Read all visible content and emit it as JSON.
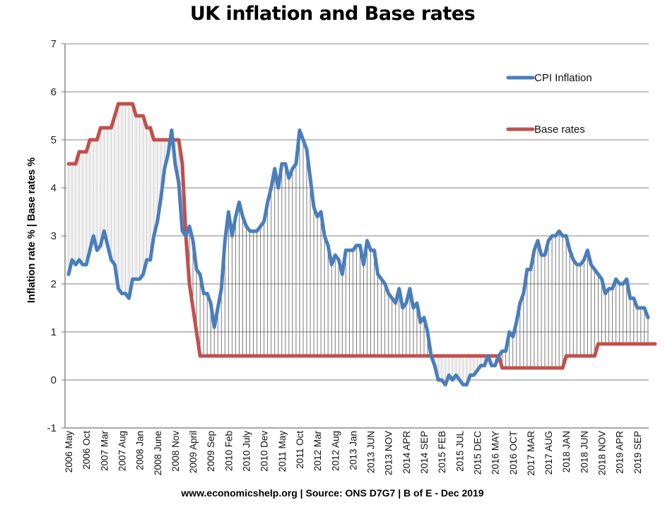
{
  "chart_data": {
    "type": "line",
    "title": "UK inflation and Base rates",
    "ylabel": "Inflation rate % | Base rates %",
    "xlabel": "",
    "footer": "www.economicshelp.org | Source: ONS D7G7 | B of E - Dec 2019",
    "ylim": [
      -1,
      7
    ],
    "yticks": [
      "-1",
      "0",
      "1",
      "2",
      "3",
      "4",
      "5",
      "6",
      "7"
    ],
    "grid": true,
    "legend_position": "top-right",
    "x_start": "2006 May",
    "x_end": "2019 Dec",
    "x_tick_every_months": 5,
    "x_tick_labels": [
      "2006 May",
      "2006 Oct",
      "2007 Mar",
      "2007 Aug",
      "2008 Jan",
      "2008 June",
      "2008 Nov",
      "2009 April",
      "2009  Sep",
      "2010 Feb",
      "2010 July",
      "2010 Dev",
      "2011 May",
      "2011 Oct",
      "2012 Mar",
      "2012 Aug",
      "2013 Jan",
      "2013 JUN",
      "2013 NOV",
      "2014 APR",
      "2014 SEP",
      "2015 FEB",
      "2015 JUL",
      "2015 DEC",
      "2016 MAY",
      "2016 OCT",
      "2017 MAR",
      "2017 AUG",
      "2018 JAN",
      "2018 JUN",
      "2018 NOV",
      "2019 APR",
      "2019 SEP"
    ],
    "series": [
      {
        "name": "CPI Inflation",
        "color": "#4a7ebb",
        "values": [
          2.2,
          2.5,
          2.4,
          2.5,
          2.4,
          2.4,
          2.7,
          3.0,
          2.7,
          2.8,
          3.1,
          2.8,
          2.5,
          2.4,
          1.9,
          1.8,
          1.8,
          1.7,
          2.1,
          2.1,
          2.1,
          2.2,
          2.5,
          2.5,
          3.0,
          3.3,
          3.8,
          4.4,
          4.7,
          5.2,
          4.5,
          4.1,
          3.1,
          3.0,
          3.2,
          2.9,
          2.3,
          2.2,
          1.8,
          1.8,
          1.6,
          1.1,
          1.5,
          1.9,
          2.9,
          3.5,
          3.0,
          3.4,
          3.7,
          3.4,
          3.2,
          3.1,
          3.1,
          3.1,
          3.2,
          3.3,
          3.7,
          4.0,
          4.4,
          4.0,
          4.5,
          4.5,
          4.2,
          4.4,
          4.5,
          5.2,
          5.0,
          4.8,
          4.2,
          3.6,
          3.4,
          3.5,
          3.0,
          2.8,
          2.4,
          2.6,
          2.5,
          2.2,
          2.7,
          2.7,
          2.7,
          2.8,
          2.8,
          2.4,
          2.9,
          2.7,
          2.7,
          2.2,
          2.1,
          2.0,
          1.8,
          1.7,
          1.6,
          1.9,
          1.5,
          1.6,
          1.9,
          1.5,
          1.6,
          1.2,
          1.3,
          1.0,
          0.5,
          0.3,
          0.0,
          0.0,
          -0.1,
          0.1,
          0.0,
          0.1,
          0.0,
          -0.1,
          -0.1,
          0.1,
          0.1,
          0.2,
          0.3,
          0.3,
          0.5,
          0.3,
          0.3,
          0.5,
          0.6,
          0.6,
          1.0,
          0.9,
          1.2,
          1.6,
          1.8,
          2.3,
          2.3,
          2.7,
          2.9,
          2.6,
          2.6,
          2.9,
          3.0,
          3.0,
          3.1,
          3.0,
          3.0,
          2.7,
          2.5,
          2.4,
          2.4,
          2.5,
          2.7,
          2.4,
          2.3,
          2.2,
          2.1,
          1.8,
          1.9,
          1.9,
          2.1,
          2.0,
          2.0,
          2.1,
          1.7,
          1.7,
          1.5,
          1.5,
          1.5,
          1.3
        ],
        "note": "monthly, 2006 May to 2019 Dec"
      },
      {
        "name": "Base rates",
        "color": "#c0504d",
        "values": [
          4.5,
          4.5,
          4.5,
          4.75,
          4.75,
          4.75,
          5.0,
          5.0,
          5.0,
          5.25,
          5.25,
          5.25,
          5.25,
          5.5,
          5.75,
          5.75,
          5.75,
          5.75,
          5.75,
          5.5,
          5.5,
          5.5,
          5.25,
          5.25,
          5.0,
          5.0,
          5.0,
          5.0,
          5.0,
          5.0,
          5.0,
          5.0,
          4.5,
          3.0,
          2.0,
          1.5,
          1.0,
          0.5,
          0.5,
          0.5,
          0.5,
          0.5,
          0.5,
          0.5,
          0.5,
          0.5,
          0.5,
          0.5,
          0.5,
          0.5,
          0.5,
          0.5,
          0.5,
          0.5,
          0.5,
          0.5,
          0.5,
          0.5,
          0.5,
          0.5,
          0.5,
          0.5,
          0.5,
          0.5,
          0.5,
          0.5,
          0.5,
          0.5,
          0.5,
          0.5,
          0.5,
          0.5,
          0.5,
          0.5,
          0.5,
          0.5,
          0.5,
          0.5,
          0.5,
          0.5,
          0.5,
          0.5,
          0.5,
          0.5,
          0.5,
          0.5,
          0.5,
          0.5,
          0.5,
          0.5,
          0.5,
          0.5,
          0.5,
          0.5,
          0.5,
          0.5,
          0.5,
          0.5,
          0.5,
          0.5,
          0.5,
          0.5,
          0.5,
          0.5,
          0.5,
          0.5,
          0.5,
          0.5,
          0.5,
          0.5,
          0.5,
          0.5,
          0.5,
          0.5,
          0.5,
          0.5,
          0.5,
          0.5,
          0.5,
          0.5,
          0.5,
          0.5,
          0.25,
          0.25,
          0.25,
          0.25,
          0.25,
          0.25,
          0.25,
          0.25,
          0.25,
          0.25,
          0.25,
          0.25,
          0.25,
          0.25,
          0.25,
          0.25,
          0.25,
          0.25,
          0.5,
          0.5,
          0.5,
          0.5,
          0.5,
          0.5,
          0.5,
          0.5,
          0.5,
          0.75,
          0.75,
          0.75,
          0.75,
          0.75,
          0.75,
          0.75,
          0.75,
          0.75,
          0.75,
          0.75,
          0.75,
          0.75,
          0.75,
          0.75,
          0.75,
          0.75
        ],
        "note": "monthly, 2006 May to 2019 Dec"
      }
    ]
  }
}
